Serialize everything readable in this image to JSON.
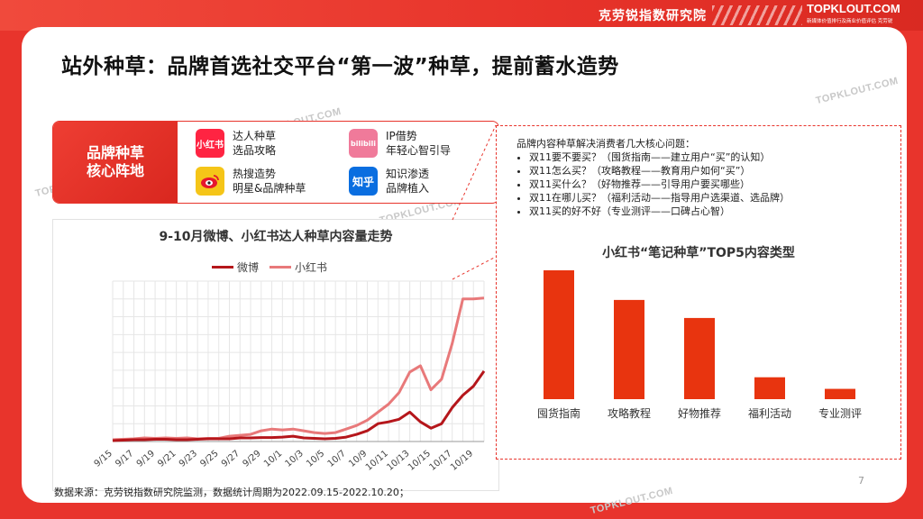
{
  "header": {
    "brand_cn": "克劳锐指数研究院",
    "brand_en": "TOPKLOUT.COM",
    "brand_sub": "新媒体价值排行及商业价值评估 克劳锐"
  },
  "title": "站外种草：品牌首选社交平台“第一波”种草，提前蓄水造势",
  "hub": {
    "label_line1": "品牌种草",
    "label_line2": "核心阵地",
    "platforms": [
      {
        "icon": "xiaohongshu-icon",
        "icon_text": "小红书",
        "color": "#ff2442",
        "line1": "达人种草",
        "line2": "选品攻略"
      },
      {
        "icon": "bilibili-icon",
        "icon_text": "bilibili",
        "color": "#f07a9a",
        "line1": "IP借势",
        "line2": "年轻心智引导"
      },
      {
        "icon": "weibo-icon",
        "icon_text": "",
        "color": "#f5c518",
        "line1": "热搜造势",
        "line2": "明星&品牌种草"
      },
      {
        "icon": "zhihu-icon",
        "icon_text": "知乎",
        "color": "#0a6ee0",
        "line1": "知识渗透",
        "line2": "品牌植入"
      }
    ]
  },
  "intro": {
    "heading": "品牌内容种草解决消费者几大核心问题：",
    "items": [
      "双11要不要买？（囤货指南——建立用户“买”的认知）",
      "双11怎么买？（攻略教程——教育用户如何“买”）",
      "双11买什么？（好物推荐——引导用户要买哪些）",
      "双11在哪儿买？（福利活动——指导用户选渠道、选品牌）",
      "双11买的好不好（专业测评——口碑占心智）"
    ]
  },
  "colors": {
    "weibo": "#b5161b",
    "xiaohongshu": "#e8797a",
    "bar": "#e8340f",
    "accent": "#e8342c"
  },
  "chart_data": [
    {
      "type": "line",
      "title": "9-10月微博、小红书达人种草内容量走势",
      "x": [
        "9/15",
        "9/16",
        "9/17",
        "9/18",
        "9/19",
        "9/20",
        "9/21",
        "9/22",
        "9/23",
        "9/24",
        "9/25",
        "9/26",
        "9/27",
        "9/28",
        "9/29",
        "9/30",
        "10/1",
        "10/2",
        "10/3",
        "10/4",
        "10/5",
        "10/6",
        "10/7",
        "10/8",
        "10/9",
        "10/10",
        "10/11",
        "10/12",
        "10/13",
        "10/14",
        "10/15",
        "10/16",
        "10/17",
        "10/18",
        "10/19",
        "10/20"
      ],
      "xtick_labels": [
        "9/15",
        "9/17",
        "9/19",
        "9/21",
        "9/23",
        "9/25",
        "9/27",
        "9/29",
        "10/1",
        "10/3",
        "10/5",
        "10/7",
        "10/9",
        "10/11",
        "10/13",
        "10/15",
        "10/17",
        "10/19"
      ],
      "series": [
        {
          "name": "微博",
          "values": [
            1,
            1.5,
            2,
            2,
            2.5,
            2.5,
            2,
            2,
            2.5,
            3,
            3,
            3,
            4,
            4,
            4.5,
            4.5,
            5,
            6,
            4,
            3.5,
            3,
            3.5,
            5,
            8,
            12,
            20,
            22,
            25,
            33,
            22,
            15,
            20,
            38,
            52,
            62,
            79
          ]
        },
        {
          "name": "小红书",
          "values": [
            2,
            2.5,
            3,
            4,
            3.5,
            4,
            3.5,
            4,
            3,
            3.5,
            3.5,
            6,
            7,
            8,
            12,
            14,
            13,
            14,
            12,
            10,
            9,
            10,
            14,
            18,
            24,
            33,
            42,
            55,
            78,
            85,
            58,
            70,
            110,
            160,
            160,
            161
          ]
        }
      ],
      "ylim": [
        0,
        180
      ],
      "grid": true,
      "legend": "top"
    },
    {
      "type": "bar",
      "title": "小红书“笔记种草”TOP5内容类型",
      "categories": [
        "囤货指南",
        "攻略教程",
        "好物推荐",
        "福利活动",
        "专业测评"
      ],
      "values": [
        100,
        77,
        63,
        17,
        8
      ]
    }
  ],
  "footnote": "数据来源：克劳锐指数研究院监测，数据统计周期为2022.09.15-2022.10.20；",
  "page_number": "7"
}
